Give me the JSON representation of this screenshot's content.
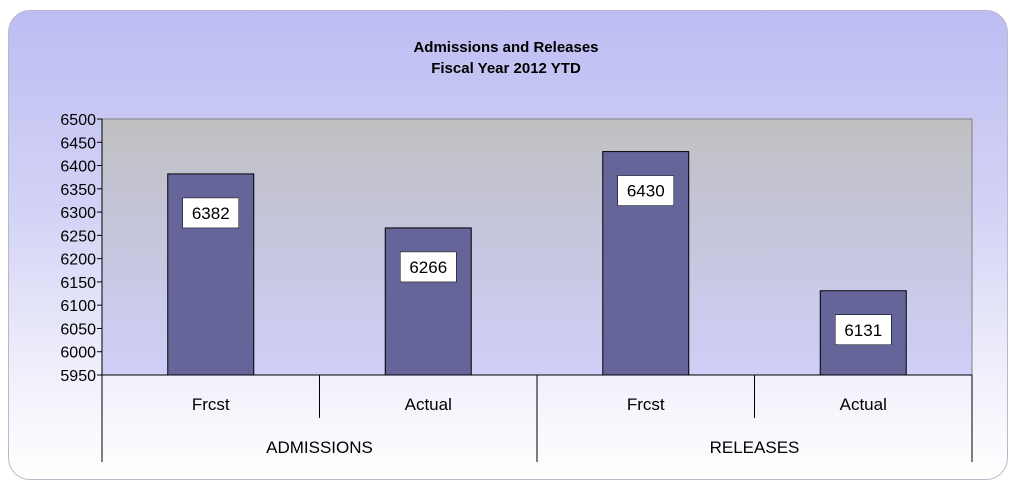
{
  "chart_data": {
    "type": "bar",
    "title": "Admissions and Releases",
    "subtitle": "Fiscal Year 2012 YTD",
    "xlabel": "",
    "ylabel": "",
    "ylim": [
      5950,
      6500
    ],
    "yticks": [
      5950,
      6000,
      6050,
      6100,
      6150,
      6200,
      6250,
      6300,
      6350,
      6400,
      6450,
      6500
    ],
    "groups": [
      "ADMISSIONS",
      "RELEASES"
    ],
    "categories": [
      "Frcst",
      "Actual",
      "Frcst",
      "Actual"
    ],
    "category_groups": [
      0,
      0,
      1,
      1
    ],
    "values": [
      6382,
      6266,
      6430,
      6131
    ],
    "data_labels": [
      "6382",
      "6266",
      "6430",
      "6131"
    ],
    "grid": false,
    "legend": "none",
    "colors": {
      "bar": "#65659a",
      "bar_border": "#000000",
      "plot_top": "#c0c0c0",
      "plot_bottom": "#cfcff8",
      "label_box": "#ffffff"
    }
  }
}
